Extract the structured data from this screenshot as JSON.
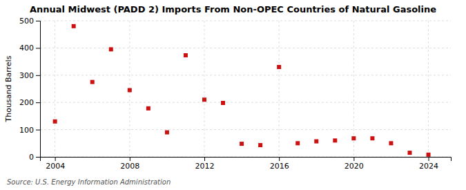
{
  "chart_data": {
    "type": "scatter",
    "title": "Annual Midwest (PADD 2) Imports From Non-OPEC Countries of Natural Gasoline",
    "ylabel": "Thousand Barrels",
    "source": "Source: U.S. Energy Information Administration",
    "x": [
      2004,
      2005,
      2006,
      2007,
      2008,
      2009,
      2010,
      2011,
      2012,
      2013,
      2014,
      2015,
      2016,
      2017,
      2018,
      2019,
      2020,
      2021,
      2022,
      2023,
      2024
    ],
    "values": [
      130,
      480,
      275,
      395,
      245,
      178,
      90,
      373,
      210,
      198,
      48,
      43,
      330,
      50,
      57,
      60,
      68,
      68,
      50,
      15,
      8
    ],
    "color": "#cc1111",
    "marker": "square",
    "xlim": [
      2003.2,
      2025.2
    ],
    "ylim": [
      0,
      500
    ],
    "xticks": [
      2004,
      2008,
      2012,
      2016,
      2020,
      2024
    ],
    "yticks": [
      0,
      100,
      200,
      300,
      400,
      500
    ],
    "grid": true
  }
}
